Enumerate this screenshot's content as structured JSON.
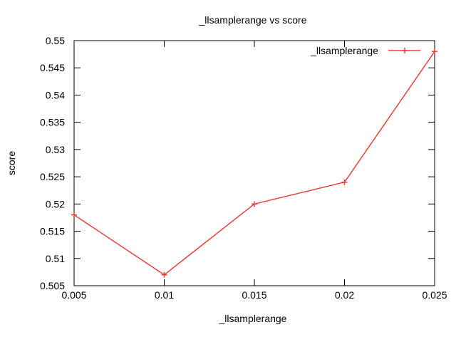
{
  "chart_data": {
    "type": "line",
    "title": "_llsamplerange vs score",
    "xlabel": "_llsamplerange",
    "ylabel": "score",
    "xlim": [
      0.005,
      0.025
    ],
    "ylim": [
      0.505,
      0.55
    ],
    "xticks": [
      "0.005",
      "0.01",
      "0.015",
      "0.02",
      "0.025"
    ],
    "yticks": [
      "0.505",
      "0.51",
      "0.515",
      "0.52",
      "0.525",
      "0.53",
      "0.535",
      "0.54",
      "0.545",
      "0.55"
    ],
    "legend_position": "top-right",
    "series": [
      {
        "name": "_llsamplerange",
        "color": "#e8413a",
        "marker": "plus",
        "x": [
          0.005,
          0.01,
          0.015,
          0.02,
          0.025
        ],
        "y": [
          0.518,
          0.507,
          0.52,
          0.524,
          0.548
        ]
      }
    ]
  }
}
